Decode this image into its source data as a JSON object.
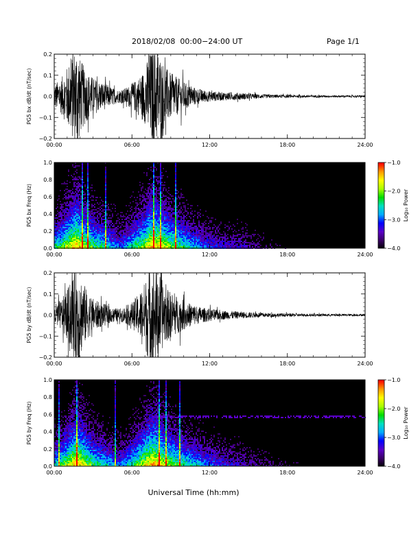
{
  "header": {
    "title": "2018/02/08  00:00−24:00 UT",
    "page": "Page 1/1"
  },
  "xaxis_label": "Universal Time (hh:mm)",
  "colorbar": {
    "label": "Log₁₀ Power",
    "ticks": [
      "−1.0",
      "−2.0",
      "−3.0",
      "−4.0"
    ],
    "range": [
      -4.0,
      -1.0
    ],
    "colors": [
      "#000000",
      "#3a0066",
      "#5a00c8",
      "#0000ff",
      "#00aaff",
      "#00e0c0",
      "#00dd00",
      "#aaff00",
      "#ffff00",
      "#ff9900",
      "#ff0000"
    ]
  },
  "chart_data": [
    {
      "type": "line",
      "ylabel": "PG5 bx dB/dt (nT/sec)",
      "xlim": [
        0,
        24
      ],
      "ylim": [
        -0.2,
        0.2
      ],
      "x_tick_labels": [
        "00:00",
        "06:00",
        "12:00",
        "18:00",
        "24:00"
      ],
      "y_tick_labels": [
        "0.2",
        "0.1",
        "0.0",
        "−0.1",
        "−0.2"
      ],
      "envelope": {
        "x": [
          0,
          0.5,
          1,
          1.5,
          1.8,
          2.0,
          2.5,
          3,
          3.5,
          4,
          4.5,
          5,
          5.5,
          6,
          6.5,
          7,
          7.3,
          7.6,
          8,
          8.3,
          8.6,
          9,
          9.5,
          10,
          10.5,
          11,
          11.5,
          12,
          13,
          14,
          15,
          16,
          17,
          18,
          19,
          20,
          21,
          22,
          23,
          24
        ],
        "amplitude": [
          0.06,
          0.08,
          0.14,
          0.22,
          0.26,
          0.18,
          0.12,
          0.09,
          0.07,
          0.06,
          0.04,
          0.03,
          0.04,
          0.06,
          0.09,
          0.13,
          0.2,
          0.24,
          0.22,
          0.18,
          0.14,
          0.11,
          0.09,
          0.07,
          0.05,
          0.04,
          0.03,
          0.025,
          0.02,
          0.018,
          0.014,
          0.01,
          0.008,
          0.007,
          0.006,
          0.006,
          0.005,
          0.005,
          0.005,
          0.005
        ]
      }
    },
    {
      "type": "heatmap",
      "ylabel": "PG5 bx Freq (Hz)",
      "xlim": [
        0,
        24
      ],
      "ylim": [
        0.0,
        1.0
      ],
      "x_tick_labels": [
        "00:00",
        "06:00",
        "12:00",
        "18:00",
        "24:00"
      ],
      "y_tick_labels": [
        "1.0",
        "0.8",
        "0.6",
        "0.4",
        "0.2",
        "0.0"
      ],
      "noise_line_hz": null
    },
    {
      "type": "line",
      "ylabel": "PG5 by dB/dt (nT/sec)",
      "xlim": [
        0,
        24
      ],
      "ylim": [
        -0.2,
        0.2
      ],
      "x_tick_labels": [
        "00:00",
        "06:00",
        "12:00",
        "18:00",
        "24:00"
      ],
      "y_tick_labels": [
        "0.2",
        "0.1",
        "0.0",
        "−0.1",
        "−0.2"
      ],
      "envelope": {
        "x": [
          0,
          0.5,
          1,
          1.5,
          1.8,
          2.0,
          2.5,
          3,
          3.5,
          4,
          4.5,
          5,
          5.5,
          6,
          6.5,
          7,
          7.3,
          7.6,
          8,
          8.3,
          8.6,
          9,
          9.5,
          10,
          10.5,
          11,
          11.5,
          12,
          13,
          14,
          15,
          16,
          17,
          18,
          19,
          20,
          21,
          22,
          23,
          24
        ],
        "amplitude": [
          0.05,
          0.07,
          0.12,
          0.2,
          0.25,
          0.2,
          0.12,
          0.08,
          0.06,
          0.05,
          0.035,
          0.03,
          0.04,
          0.06,
          0.1,
          0.16,
          0.22,
          0.25,
          0.22,
          0.17,
          0.13,
          0.11,
          0.09,
          0.07,
          0.055,
          0.045,
          0.035,
          0.03,
          0.022,
          0.018,
          0.014,
          0.011,
          0.009,
          0.008,
          0.007,
          0.006,
          0.006,
          0.005,
          0.005,
          0.005
        ]
      }
    },
    {
      "type": "heatmap",
      "ylabel": "PG5 by Freq (Hz)",
      "xlim": [
        0,
        24
      ],
      "ylim": [
        0.0,
        1.0
      ],
      "x_tick_labels": [
        "00:00",
        "06:00",
        "12:00",
        "18:00",
        "24:00"
      ],
      "y_tick_labels": [
        "1.0",
        "0.8",
        "0.6",
        "0.4",
        "0.2",
        "0.0"
      ],
      "noise_line_hz": 0.57
    }
  ]
}
